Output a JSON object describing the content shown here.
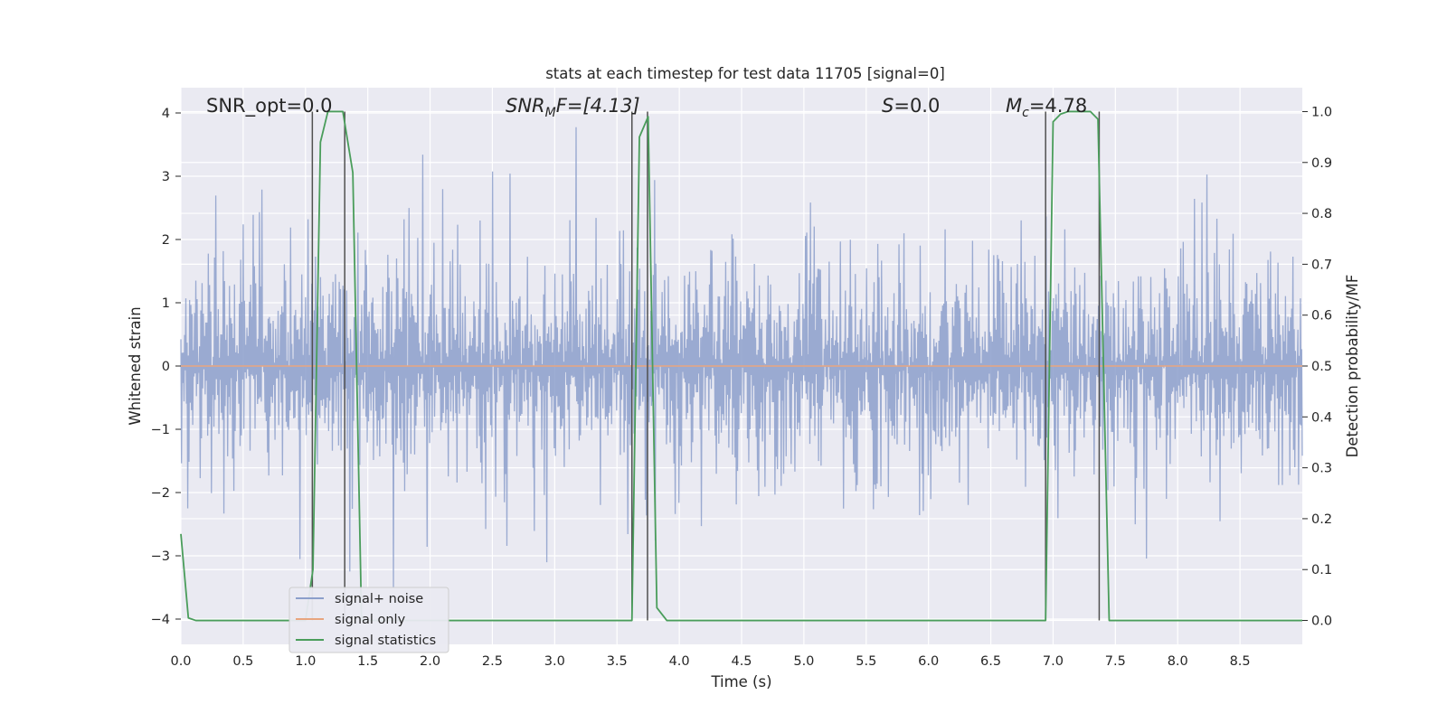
{
  "chart_data": {
    "type": "line",
    "title": "stats at each timestep for test data 11705 [signal=0]",
    "xlabel": "Time (s)",
    "ylabel": "Whitened strain",
    "y2label": "Detection probability/MF",
    "xlim": [
      0,
      9.0
    ],
    "ylim": [
      -4.4,
      4.4
    ],
    "y2lim": [
      -0.047,
      1.047
    ],
    "xticks": [
      0.0,
      0.5,
      1.0,
      1.5,
      2.0,
      2.5,
      3.0,
      3.5,
      4.0,
      4.5,
      5.0,
      5.5,
      6.0,
      6.5,
      7.0,
      7.5,
      8.0,
      8.5
    ],
    "xtick_labels": [
      "0.0",
      "0.5",
      "1.0",
      "1.5",
      "2.0",
      "2.5",
      "3.0",
      "3.5",
      "4.0",
      "4.5",
      "5.0",
      "5.5",
      "6.0",
      "6.5",
      "7.0",
      "7.5",
      "8.0",
      "8.5"
    ],
    "yticks": [
      -4,
      -3,
      -2,
      -1,
      0,
      1,
      2,
      3,
      4
    ],
    "ytick_labels": [
      "−4",
      "−3",
      "−2",
      "−1",
      "0",
      "1",
      "2",
      "3",
      "4"
    ],
    "y2ticks": [
      0.0,
      0.1,
      0.2,
      0.3,
      0.4,
      0.5,
      0.6,
      0.7,
      0.8,
      0.9,
      1.0
    ],
    "y2tick_labels": [
      "0.0",
      "0.1",
      "0.2",
      "0.3",
      "0.4",
      "0.5",
      "0.6",
      "0.7",
      "0.8",
      "0.9",
      "1.0"
    ],
    "grid": true,
    "legend_position": "lower-left",
    "annotations": [
      {
        "id": "snr-opt",
        "text": "SNR_opt=0.0"
      },
      {
        "id": "snr-mf",
        "text": "SNRMF=[4.13]"
      },
      {
        "id": "s-value",
        "text": "S=0.0"
      },
      {
        "id": "mc-value",
        "text": "Mc=4.78"
      }
    ],
    "series": [
      {
        "name": "signal+ noise",
        "color": "#8c9fcb",
        "axis": "left",
        "kind": "noise",
        "approx_envelope": 1.6,
        "sample_count": 1800
      },
      {
        "name": "signal only",
        "color": "#e8a57f",
        "axis": "left",
        "x": [
          0.0,
          9.0
        ],
        "values": [
          0,
          0
        ]
      },
      {
        "name": "signal statistics",
        "color": "#4a9d5b",
        "axis": "right",
        "x": [
          0.0,
          0.06,
          0.12,
          1.0,
          1.06,
          1.12,
          1.18,
          1.3,
          1.38,
          1.45,
          1.55,
          3.62,
          3.68,
          3.75,
          3.82,
          3.9,
          6.94,
          7.0,
          7.06,
          7.12,
          7.3,
          7.36,
          7.45,
          7.52,
          9.0
        ],
        "values": [
          0.17,
          0.005,
          0.0,
          0.0,
          0.1,
          0.94,
          1.0,
          1.0,
          0.88,
          0.0,
          0.0,
          0.0,
          0.95,
          0.99,
          0.025,
          0.0,
          0.0,
          0.98,
          0.995,
          1.0,
          1.0,
          0.985,
          0.0,
          0.0,
          0.0
        ]
      }
    ],
    "vertical_markers": [
      1.055,
      1.315,
      3.62,
      3.745,
      6.94,
      7.37
    ]
  }
}
